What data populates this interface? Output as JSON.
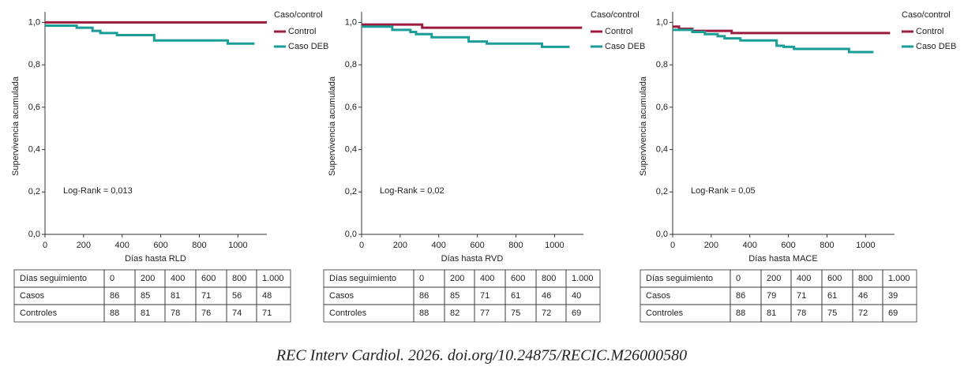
{
  "chart_data": [
    {
      "type": "step",
      "y_label": "Supervivencia acumulada",
      "x_label": "Días hasta RLD",
      "annotation": "Log-Rank = 0,013",
      "legend_title": "Caso/control",
      "legend": "upper right",
      "xlim": [
        0,
        1150
      ],
      "ylim": [
        0,
        1.05
      ],
      "xticks": [
        0,
        200,
        400,
        600,
        800,
        1000
      ],
      "yticks": [
        {
          "value": 0,
          "label": "0,0"
        },
        {
          "value": 0.2,
          "label": "0,2"
        },
        {
          "value": 0.4,
          "label": "0,4"
        },
        {
          "value": 0.6,
          "label": "0,6"
        },
        {
          "value": 0.8,
          "label": "0,8"
        },
        {
          "value": 1.0,
          "label": "1,0"
        }
      ],
      "series": [
        {
          "name": "Control",
          "color": "#9b1c3c",
          "x": [
            0,
            1150
          ],
          "values": [
            1.0,
            1.0
          ]
        },
        {
          "name": "Caso DEB",
          "color": "#1a9d96",
          "x": [
            0,
            164,
            246,
            287,
            373,
            566,
            947,
            1086
          ],
          "values": [
            0.985,
            0.975,
            0.96,
            0.95,
            0.94,
            0.915,
            0.9,
            0.9
          ]
        }
      ]
    },
    {
      "type": "step",
      "y_label": "Supervivencia acumulada",
      "x_label": "Días hasta RVD",
      "annotation": "Log-Rank = 0,02",
      "legend_title": "Caso/control",
      "legend": "upper right",
      "xlim": [
        0,
        1150
      ],
      "ylim": [
        0,
        1.05
      ],
      "xticks": [
        0,
        200,
        400,
        600,
        800,
        1000
      ],
      "yticks": [
        {
          "value": 0,
          "label": "0,0"
        },
        {
          "value": 0.2,
          "label": "0,2"
        },
        {
          "value": 0.4,
          "label": "0,4"
        },
        {
          "value": 0.6,
          "label": "0,6"
        },
        {
          "value": 0.8,
          "label": "0,8"
        },
        {
          "value": 1.0,
          "label": "1,0"
        }
      ],
      "series": [
        {
          "name": "Control",
          "color": "#9b1c3c",
          "x": [
            0,
            314,
            1143
          ],
          "values": [
            0.99,
            0.975,
            0.975
          ]
        },
        {
          "name": "Caso DEB",
          "color": "#1a9d96",
          "x": [
            0,
            159,
            253,
            282,
            363,
            555,
            649,
            935,
            1078
          ],
          "values": [
            0.98,
            0.965,
            0.955,
            0.945,
            0.93,
            0.91,
            0.9,
            0.885,
            0.885
          ]
        }
      ]
    },
    {
      "type": "step",
      "y_label": "Supervivencia acumulada",
      "x_label": "Días hasta MACE",
      "annotation": "Log-Rank = 0,05",
      "legend_title": "Caso/control",
      "legend": "upper right",
      "xlim": [
        0,
        1150
      ],
      "ylim": [
        0,
        1.05
      ],
      "xticks": [
        0,
        200,
        400,
        600,
        800,
        1000
      ],
      "yticks": [
        {
          "value": 0,
          "label": "0,0"
        },
        {
          "value": 0.2,
          "label": "0,2"
        },
        {
          "value": 0.4,
          "label": "0,4"
        },
        {
          "value": 0.6,
          "label": "0,6"
        },
        {
          "value": 0.8,
          "label": "0,8"
        },
        {
          "value": 1.0,
          "label": "1,0"
        }
      ],
      "series": [
        {
          "name": "Control",
          "color": "#9b1c3c",
          "x": [
            0,
            33,
            102,
            306,
            1127
          ],
          "values": [
            0.98,
            0.97,
            0.96,
            0.95,
            0.95
          ]
        },
        {
          "name": "Caso DEB",
          "color": "#1a9d96",
          "x": [
            0,
            102,
            167,
            233,
            269,
            351,
            539,
            575,
            629,
            914,
            1041
          ],
          "values": [
            0.965,
            0.955,
            0.945,
            0.935,
            0.925,
            0.915,
            0.89,
            0.885,
            0.875,
            0.86,
            0.86
          ]
        }
      ]
    }
  ],
  "tables": [
    {
      "header": [
        "Días seguimiento",
        0,
        200,
        400,
        600,
        800,
        "1.000"
      ],
      "rows": [
        [
          "Casos",
          86,
          85,
          81,
          71,
          56,
          48
        ],
        [
          "Controles",
          88,
          81,
          78,
          76,
          74,
          71
        ]
      ]
    },
    {
      "header": [
        "Días seguimiento",
        0,
        200,
        400,
        600,
        800,
        "1.000"
      ],
      "rows": [
        [
          "Casos",
          86,
          85,
          71,
          61,
          46,
          40
        ],
        [
          "Controles",
          88,
          82,
          77,
          75,
          72,
          69
        ]
      ]
    },
    {
      "header": [
        "Días seguimiento",
        0,
        200,
        400,
        600,
        800,
        "1.000"
      ],
      "rows": [
        [
          "Casos",
          86,
          79,
          71,
          61,
          46,
          39
        ],
        [
          "Controles",
          88,
          81,
          78,
          75,
          72,
          69
        ]
      ]
    }
  ],
  "citation": "REC Interv Cardiol. 2026. doi.org/10.24875/RECIC.M26000580"
}
